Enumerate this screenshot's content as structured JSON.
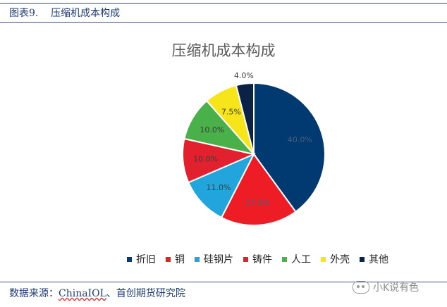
{
  "caption": "图表9.    压缩机成本构成",
  "source_prefix": "数据来源：",
  "source_org": "ChinaIOL",
  "source_rest": "、首创期货研究院",
  "watermark": "小K说有色",
  "chart_data": {
    "type": "pie",
    "title": "压缩机成本构成",
    "categories": [
      "折旧",
      "铜",
      "硅钢片",
      "铸件",
      "人工",
      "外壳",
      "其他"
    ],
    "values": [
      40.0,
      17.5,
      11.0,
      10.0,
      10.0,
      7.5,
      4.0
    ],
    "labels": [
      "40.0%",
      "17.5%",
      "11.0%",
      "10.0%",
      "10.0%",
      "7.5%",
      "4.0%"
    ],
    "colors": [
      "#003a70",
      "#ee1c25",
      "#22a5dc",
      "#e3202e",
      "#49b04a",
      "#f6e51a",
      "#0a2344"
    ],
    "label_colors": [
      "#4a5e80",
      "#4a5e80",
      "#3d3d3d",
      "#3d3d3d",
      "#3d3d3d",
      "#3d3d3d",
      "#3d3d3d"
    ],
    "legend_position": "bottom",
    "start_angle": "12 o'clock, clockwise"
  }
}
